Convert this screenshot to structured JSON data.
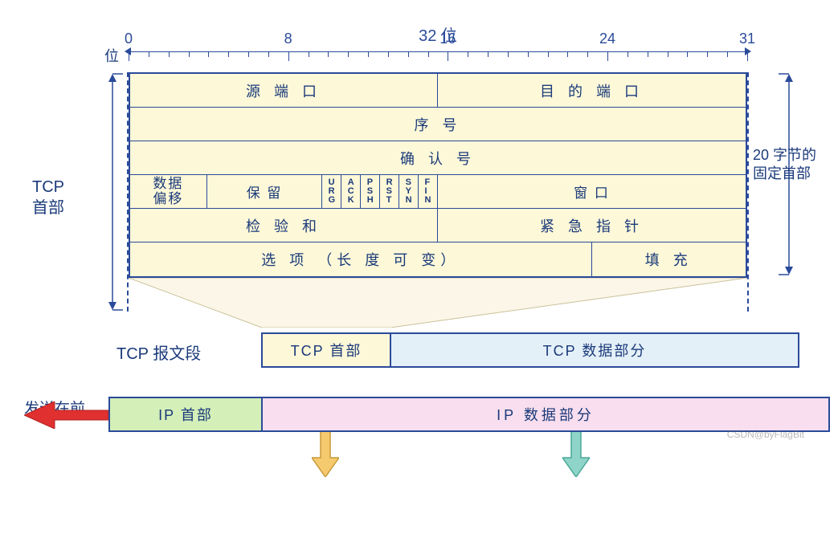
{
  "ruler": {
    "title": "32 位",
    "bit_label": "位",
    "ticks": [
      "0",
      "8",
      "16",
      "24",
      "31"
    ],
    "total_bits": 32,
    "major_every": 8,
    "color": "#2a4a9a"
  },
  "left_label": "TCP\n首部",
  "right_label": "20 字节的\n固定首部",
  "table": {
    "bg": "#fdf8d8",
    "border": "#2a4a9a",
    "rows": [
      {
        "cells": [
          {
            "w": "half",
            "t": "源 端 口"
          },
          {
            "w": "half",
            "t": "目 的 端 口"
          }
        ]
      },
      {
        "cells": [
          {
            "w": "full",
            "t": "序    号"
          }
        ]
      },
      {
        "cells": [
          {
            "w": "full",
            "t": "确  认  号"
          }
        ]
      },
      {
        "flags": true,
        "offset": "数据\n偏移",
        "reserved": "保  留",
        "flag_list": [
          [
            "U",
            "R",
            "G"
          ],
          [
            "A",
            "C",
            "K"
          ],
          [
            "P",
            "S",
            "H"
          ],
          [
            "R",
            "S",
            "T"
          ],
          [
            "S",
            "Y",
            "N"
          ],
          [
            "F",
            "I",
            "N"
          ]
        ],
        "window": "窗  口"
      },
      {
        "cells": [
          {
            "w": "half",
            "t": "检  验  和"
          },
          {
            "w": "half",
            "t": "紧 急 指 针"
          }
        ]
      },
      {
        "opt": true,
        "options": "选  项  （长 度 可 变）",
        "padding": "填  充"
      }
    ]
  },
  "segment": {
    "label": "TCP 报文段",
    "head": "TCP 首部",
    "data": "TCP 数据部分",
    "head_bg": "#fdf8d8",
    "data_bg": "#e4f0f8"
  },
  "ip": {
    "send_label": "发送在前",
    "head": "IP 首部",
    "data": "IP 数据部分",
    "head_bg": "#d4efb8",
    "data_bg": "#f8deee"
  },
  "arrows": {
    "down1_fill": "#f5c96e",
    "down1_stroke": "#c79a3a",
    "down2_fill": "#8fd4c8",
    "down2_stroke": "#4aa898",
    "red_fill": "#e03030",
    "red_stroke": "#b02020"
  },
  "watermark": "CSDN@byFlagBit",
  "fonts": {
    "base": 18,
    "title": 20,
    "flag": 11
  }
}
